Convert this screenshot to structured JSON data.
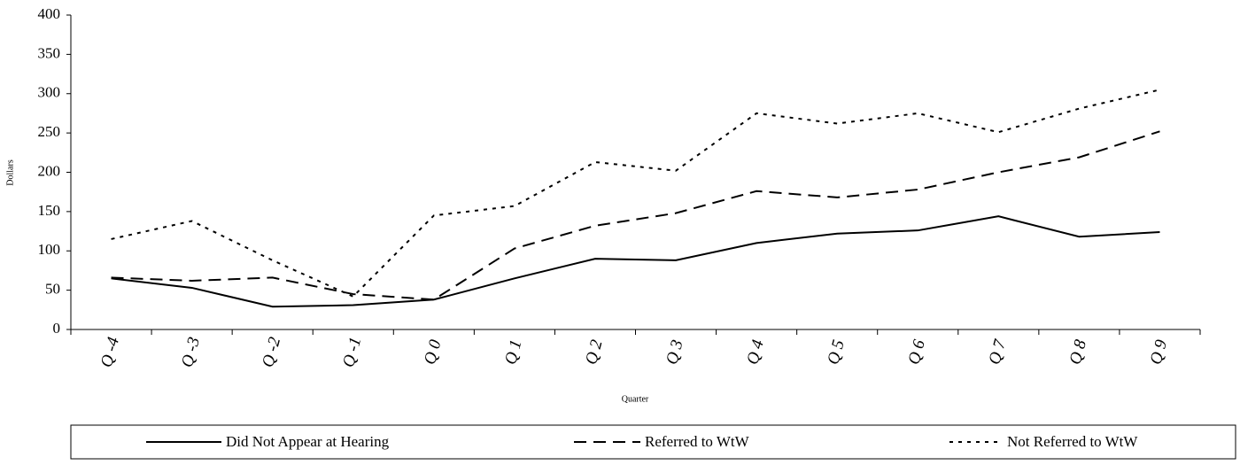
{
  "chart_data": {
    "type": "line",
    "x_label": "Quarter",
    "y_label": "Dollars",
    "categories": [
      "Q -4",
      "Q -3",
      "Q -2",
      "Q -1",
      "Q 0",
      "Q 1",
      "Q 2",
      "Q 3",
      "Q 4",
      "Q 5",
      "Q 6",
      "Q 7",
      "Q 8",
      "Q 9"
    ],
    "series": [
      {
        "name": "Did Not Appear at Hearing",
        "color": "#000000",
        "dash": "solid",
        "values": [
          65,
          53,
          29,
          31,
          38,
          65,
          90,
          88,
          110,
          122,
          126,
          144,
          118,
          124
        ]
      },
      {
        "name": "Referred to WtW",
        "color": "#000000",
        "dash": "dashed",
        "values": [
          66,
          62,
          66,
          45,
          38,
          103,
          132,
          148,
          176,
          168,
          178,
          200,
          219,
          252
        ]
      },
      {
        "name": "Not Referred to WtW",
        "color": "#000000",
        "dash": "dotted",
        "values": [
          115,
          138,
          88,
          42,
          145,
          157,
          213,
          202,
          275,
          262,
          275,
          251,
          281,
          305
        ]
      }
    ],
    "ylim": [
      0,
      400
    ],
    "yticks": [
      0,
      50,
      100,
      150,
      200,
      250,
      300,
      350,
      400
    ],
    "grid": false,
    "legend": "bottom"
  }
}
